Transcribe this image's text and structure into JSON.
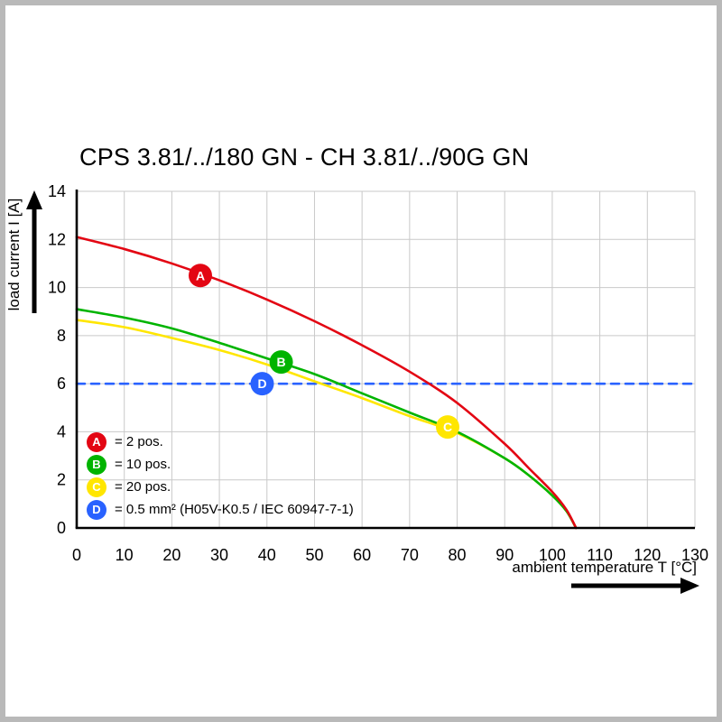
{
  "title": "CPS 3.81/../180 GN - CH 3.81/../90G GN",
  "chart_data": {
    "type": "line",
    "title": "CPS 3.81/../180 GN - CH 3.81/../90G GN",
    "xlabel": "ambient temperature T [°C]",
    "ylabel": "load current I [A]",
    "xlim": [
      0,
      130
    ],
    "ylim": [
      0,
      14
    ],
    "xticks": [
      0,
      10,
      20,
      30,
      40,
      50,
      60,
      70,
      80,
      90,
      100,
      110,
      120,
      130
    ],
    "yticks": [
      0,
      2,
      4,
      6,
      8,
      10,
      12,
      14
    ],
    "grid": true,
    "legend_position": "lower-left",
    "colors": {
      "grid": "#c9c9c9",
      "axis": "#000000",
      "red": "#e30613",
      "green": "#00b400",
      "yellow": "#ffe600",
      "blue": "#2962ff"
    },
    "series": [
      {
        "letter": "A",
        "name": "2 pos.",
        "color": "#e30613",
        "style": "solid",
        "points": [
          [
            0,
            12.1
          ],
          [
            10,
            11.6
          ],
          [
            20,
            11.0
          ],
          [
            30,
            10.3
          ],
          [
            40,
            9.5
          ],
          [
            50,
            8.6
          ],
          [
            60,
            7.6
          ],
          [
            70,
            6.5
          ],
          [
            80,
            5.2
          ],
          [
            90,
            3.5
          ],
          [
            95,
            2.5
          ],
          [
            100,
            1.5
          ],
          [
            103,
            0.75
          ],
          [
            105,
            0
          ]
        ]
      },
      {
        "letter": "B",
        "name": "10 pos.",
        "color": "#00b400",
        "style": "solid",
        "points": [
          [
            0,
            9.1
          ],
          [
            10,
            8.75
          ],
          [
            20,
            8.3
          ],
          [
            30,
            7.7
          ],
          [
            40,
            7.05
          ],
          [
            50,
            6.4
          ],
          [
            60,
            5.6
          ],
          [
            70,
            4.8
          ],
          [
            80,
            4.0
          ],
          [
            90,
            2.9
          ],
          [
            95,
            2.2
          ],
          [
            100,
            1.35
          ],
          [
            103,
            0.7
          ],
          [
            105,
            0
          ]
        ]
      },
      {
        "letter": "C",
        "name": "20 pos.",
        "color": "#ffe600",
        "style": "solid",
        "points": [
          [
            0,
            8.65
          ],
          [
            10,
            8.35
          ],
          [
            20,
            7.9
          ],
          [
            30,
            7.4
          ],
          [
            40,
            6.8
          ],
          [
            50,
            6.1
          ],
          [
            60,
            5.4
          ],
          [
            70,
            4.65
          ],
          [
            80,
            3.95
          ],
          [
            90,
            2.9
          ],
          [
            95,
            2.2
          ],
          [
            100,
            1.35
          ],
          [
            103,
            0.7
          ],
          [
            105,
            0
          ]
        ]
      },
      {
        "letter": "D",
        "name": "0.5 mm² (H05V-K0.5 / IEC 60947-7-1)",
        "color": "#2962ff",
        "style": "dashed",
        "points": [
          [
            0,
            6
          ],
          [
            130,
            6
          ]
        ]
      }
    ],
    "markers": [
      {
        "letter": "A",
        "x": 26,
        "y": 10.5,
        "color": "#e30613"
      },
      {
        "letter": "B",
        "x": 43,
        "y": 6.9,
        "color": "#00b400"
      },
      {
        "letter": "C",
        "x": 78,
        "y": 4.2,
        "color": "#ffe600"
      },
      {
        "letter": "D",
        "x": 39,
        "y": 6.0,
        "color": "#2962ff"
      }
    ],
    "legend": [
      {
        "letter": "A",
        "color": "#e30613",
        "label": "= 2 pos."
      },
      {
        "letter": "B",
        "color": "#00b400",
        "label": "= 10 pos."
      },
      {
        "letter": "C",
        "color": "#ffe600",
        "label": "= 20 pos."
      },
      {
        "letter": "D",
        "color": "#2962ff",
        "label": "= 0.5 mm² (H05V-K0.5 / IEC 60947-7-1)"
      }
    ]
  }
}
